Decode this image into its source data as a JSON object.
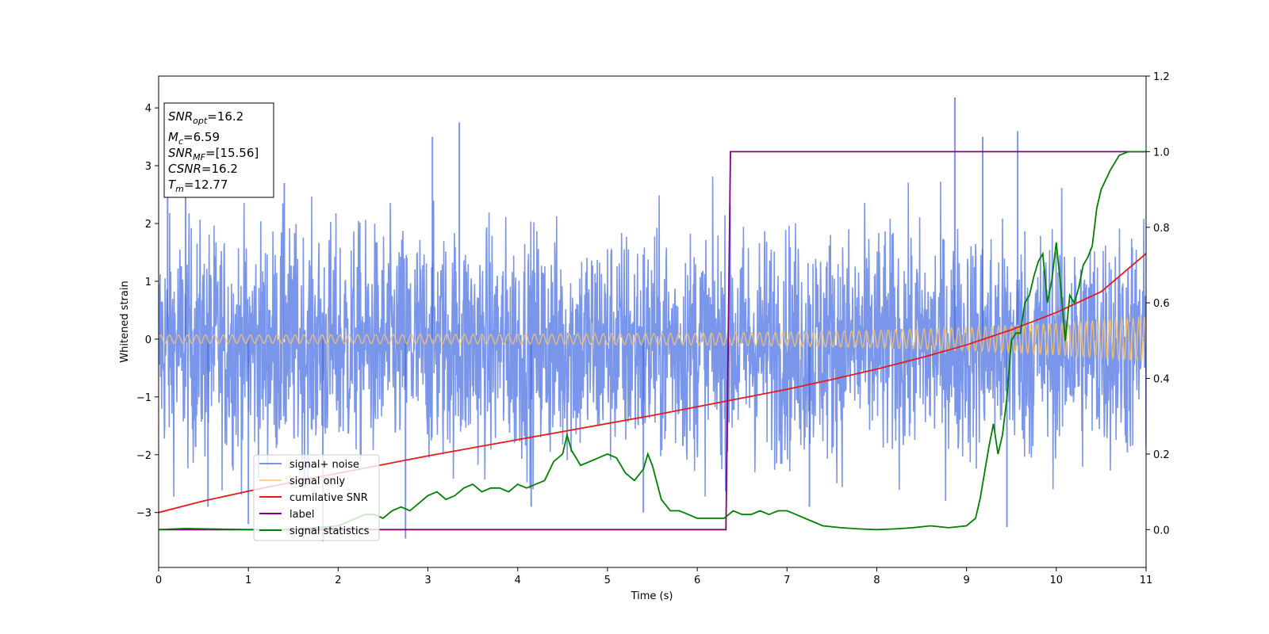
{
  "chart_data": {
    "type": "line",
    "xlabel": "Time (s)",
    "ylabel": "Whitened strain",
    "xlim": [
      0,
      11
    ],
    "ylim": [
      -3.95,
      4.55
    ],
    "y2lim": [
      -0.1,
      1.2
    ],
    "x_ticks": [
      "0",
      "1",
      "2",
      "3",
      "4",
      "5",
      "6",
      "7",
      "8",
      "9",
      "10",
      "11"
    ],
    "y_ticks": [
      "−3",
      "−2",
      "−1",
      "0",
      "1",
      "2",
      "3",
      "4"
    ],
    "y2_ticks": [
      "0.0",
      "0.2",
      "0.4",
      "0.6",
      "0.8",
      "1.0",
      "1.2"
    ],
    "grid": false,
    "legend_position": "lower-left",
    "info_box": {
      "snr_opt": {
        "base": "SNR",
        "sub": "opt",
        "value": "=16.2"
      },
      "mc": {
        "base": "M",
        "sub": "c",
        "value": "=6.59"
      },
      "snr_mf": {
        "base": "SNR",
        "sub": "MF",
        "value": "=[15.56]"
      },
      "csnr": {
        "base": "CSNR",
        "value": "=16.2"
      },
      "tm": {
        "base": "T",
        "sub": "m",
        "value": "=12.77"
      }
    },
    "series": [
      {
        "name": "signal+ noise",
        "color": "#4169e1",
        "axis": "left",
        "style": "noise band",
        "band_envelope": {
          "x": [
            0,
            11
          ],
          "lower": [
            -1.7,
            -1.7
          ],
          "upper": [
            1.5,
            1.5
          ]
        },
        "spike_peaks": {
          "x": [
            0.1,
            0.3,
            1.4,
            3.05,
            3.35,
            8.87,
            9.18,
            9.57
          ],
          "y": [
            2.9,
            2.6,
            2.7,
            3.5,
            3.75,
            4.18,
            3.5,
            3.6
          ]
        },
        "spike_troughs": {
          "x": [
            0.55,
            1.0,
            1.83,
            2.75,
            4.15,
            5.4,
            7.25,
            9.45
          ],
          "y": [
            -2.9,
            -3.2,
            -3.5,
            -3.45,
            -2.9,
            -3.0,
            -2.9,
            -3.25
          ]
        }
      },
      {
        "name": "signal only",
        "color": "#f5c06e",
        "axis": "left",
        "style": "chirp",
        "amplitude_envelope": {
          "x": [
            0,
            2,
            4,
            6,
            7,
            8,
            9,
            10,
            11
          ],
          "y": [
            0.07,
            0.075,
            0.085,
            0.1,
            0.12,
            0.15,
            0.2,
            0.27,
            0.38
          ]
        }
      },
      {
        "name": "cumilative SNR",
        "color": "#e41a1c",
        "axis": "left",
        "x": [
          0,
          0.5,
          1,
          1.5,
          2,
          2.5,
          3,
          3.5,
          4,
          4.5,
          5,
          5.5,
          6,
          6.5,
          7,
          7.5,
          8,
          8.5,
          9,
          9.5,
          10,
          10.5,
          11
        ],
        "y": [
          -3.0,
          -2.8,
          -2.63,
          -2.47,
          -2.32,
          -2.17,
          -2.02,
          -1.88,
          -1.74,
          -1.6,
          -1.46,
          -1.32,
          -1.17,
          -1.02,
          -0.87,
          -0.7,
          -0.52,
          -0.32,
          -0.1,
          0.16,
          0.46,
          0.82,
          1.48
        ]
      },
      {
        "name": "label",
        "color": "#800080",
        "axis": "right",
        "x": [
          0,
          6.32,
          6.37,
          11
        ],
        "y": [
          0.0,
          0.0,
          1.0,
          1.0
        ]
      },
      {
        "name": "signal statistics",
        "color": "#008000",
        "axis": "right",
        "x": [
          0,
          0.3,
          1.0,
          1.5,
          2.0,
          2.2,
          2.3,
          2.4,
          2.5,
          2.6,
          2.7,
          2.8,
          2.9,
          3.0,
          3.1,
          3.2,
          3.3,
          3.4,
          3.5,
          3.6,
          3.7,
          3.8,
          3.9,
          4.0,
          4.1,
          4.2,
          4.3,
          4.4,
          4.5,
          4.55,
          4.6,
          4.7,
          4.8,
          4.9,
          5.0,
          5.1,
          5.2,
          5.3,
          5.4,
          5.45,
          5.5,
          5.6,
          5.7,
          5.8,
          5.9,
          6.0,
          6.1,
          6.2,
          6.3,
          6.4,
          6.5,
          6.6,
          6.7,
          6.8,
          6.9,
          7.0,
          7.1,
          7.2,
          7.4,
          7.6,
          7.8,
          8.0,
          8.2,
          8.4,
          8.6,
          8.8,
          9.0,
          9.1,
          9.15,
          9.2,
          9.25,
          9.3,
          9.35,
          9.4,
          9.45,
          9.5,
          9.55,
          9.6,
          9.65,
          9.7,
          9.75,
          9.8,
          9.85,
          9.9,
          9.95,
          10.0,
          10.05,
          10.1,
          10.15,
          10.2,
          10.25,
          10.3,
          10.35,
          10.4,
          10.45,
          10.5,
          10.6,
          10.7,
          10.8,
          10.9,
          11.0
        ],
        "y": [
          0.0,
          0.003,
          0.0,
          0.0,
          0.01,
          0.03,
          0.04,
          0.04,
          0.03,
          0.05,
          0.06,
          0.05,
          0.07,
          0.09,
          0.1,
          0.08,
          0.09,
          0.11,
          0.12,
          0.1,
          0.11,
          0.11,
          0.1,
          0.12,
          0.11,
          0.12,
          0.13,
          0.18,
          0.2,
          0.25,
          0.21,
          0.17,
          0.18,
          0.19,
          0.2,
          0.19,
          0.15,
          0.13,
          0.16,
          0.2,
          0.17,
          0.08,
          0.05,
          0.05,
          0.04,
          0.03,
          0.03,
          0.03,
          0.03,
          0.05,
          0.04,
          0.04,
          0.05,
          0.04,
          0.05,
          0.05,
          0.04,
          0.03,
          0.01,
          0.005,
          0.002,
          0.0,
          0.002,
          0.005,
          0.01,
          0.005,
          0.01,
          0.03,
          0.08,
          0.15,
          0.22,
          0.28,
          0.2,
          0.25,
          0.35,
          0.5,
          0.52,
          0.52,
          0.6,
          0.62,
          0.67,
          0.71,
          0.73,
          0.6,
          0.66,
          0.76,
          0.64,
          0.5,
          0.62,
          0.6,
          0.64,
          0.7,
          0.72,
          0.75,
          0.85,
          0.9,
          0.95,
          0.99,
          1.0,
          1.0,
          1.0
        ]
      }
    ]
  }
}
